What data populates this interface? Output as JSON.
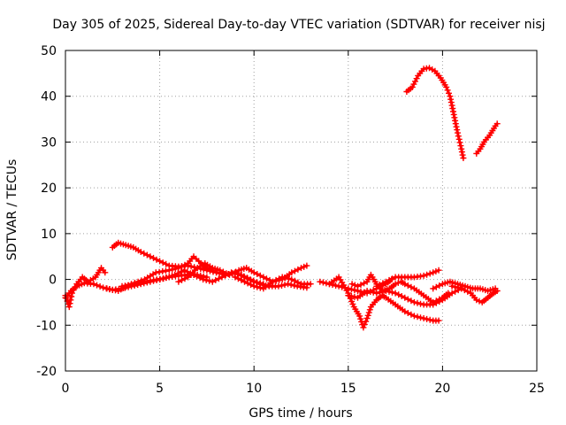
{
  "chart_data": {
    "type": "scatter",
    "title": "Day 305 of 2025, Sidereal Day-to-day VTEC variation (SDTVAR) for receiver nisj",
    "xlabel": "GPS time / hours",
    "ylabel": "SDTVAR / TECUs",
    "xlim": [
      0,
      25
    ],
    "ylim": [
      -20,
      50
    ],
    "xticks": [
      0,
      5,
      10,
      15,
      20,
      25
    ],
    "yticks": [
      -20,
      -10,
      0,
      10,
      20,
      30,
      40,
      50
    ],
    "grid": true,
    "marker": "+",
    "series": [
      {
        "name": "SDTVAR",
        "color": "#ff0000",
        "tracks": [
          [
            [
              0.0,
              -3.5
            ],
            [
              0.2,
              -6.0
            ],
            [
              0.35,
              -3.0
            ],
            [
              0.6,
              -1.0
            ],
            [
              0.9,
              0.5
            ],
            [
              1.2,
              -0.5
            ],
            [
              1.6,
              0.5
            ],
            [
              1.9,
              2.5
            ],
            [
              2.1,
              1.5
            ]
          ],
          [
            [
              0.0,
              -4.0
            ],
            [
              0.3,
              -2.5
            ],
            [
              0.6,
              -1.5
            ],
            [
              1.0,
              -0.8
            ],
            [
              1.5,
              -1.0
            ],
            [
              2.0,
              -1.8
            ],
            [
              2.5,
              -2.3
            ],
            [
              3.0,
              -2.0
            ],
            [
              3.5,
              -1.5
            ],
            [
              4.0,
              -1.0
            ],
            [
              4.5,
              -0.5
            ],
            [
              5.0,
              0.0
            ],
            [
              5.5,
              0.5
            ],
            [
              6.0,
              0.8
            ],
            [
              6.5,
              1.0
            ],
            [
              7.0,
              1.0
            ],
            [
              7.5,
              0.5
            ]
          ],
          [
            [
              2.5,
              7.0
            ],
            [
              2.8,
              8.0
            ],
            [
              3.2,
              7.5
            ],
            [
              3.6,
              7.0
            ],
            [
              4.0,
              6.0
            ],
            [
              4.5,
              5.0
            ],
            [
              5.0,
              4.0
            ],
            [
              5.5,
              3.0
            ],
            [
              6.0,
              2.8
            ],
            [
              6.5,
              3.0
            ],
            [
              7.0,
              2.5
            ],
            [
              7.5,
              2.0
            ],
            [
              8.0,
              1.5
            ]
          ],
          [
            [
              2.2,
              -2.0
            ],
            [
              2.8,
              -2.5
            ],
            [
              3.5,
              -1.0
            ],
            [
              4.2,
              0.0
            ],
            [
              4.8,
              1.5
            ],
            [
              5.5,
              2.0
            ],
            [
              6.0,
              2.5
            ],
            [
              6.5,
              3.5
            ],
            [
              6.8,
              5.0
            ],
            [
              7.2,
              3.5
            ],
            [
              7.5,
              2.5
            ],
            [
              8.0,
              1.5
            ],
            [
              8.5,
              1.0
            ],
            [
              9.0,
              1.5
            ],
            [
              9.5,
              0.5
            ],
            [
              10.0,
              -0.5
            ],
            [
              10.5,
              -1.0
            ]
          ],
          [
            [
              3.0,
              -1.5
            ],
            [
              3.8,
              -1.0
            ],
            [
              4.5,
              -0.3
            ],
            [
              5.2,
              0.2
            ],
            [
              5.8,
              1.0
            ],
            [
              6.3,
              2.0
            ],
            [
              6.8,
              1.0
            ],
            [
              7.3,
              0.0
            ],
            [
              7.8,
              -0.5
            ],
            [
              8.3,
              0.5
            ],
            [
              8.8,
              1.5
            ],
            [
              9.3,
              1.0
            ],
            [
              9.8,
              0.0
            ],
            [
              10.3,
              -1.0
            ],
            [
              10.8,
              -1.5
            ],
            [
              11.3,
              -1.5
            ],
            [
              11.8,
              -1.0
            ],
            [
              12.3,
              -1.5
            ],
            [
              12.8,
              -1.8
            ]
          ],
          [
            [
              6.0,
              -0.5
            ],
            [
              6.5,
              0.5
            ],
            [
              7.0,
              2.5
            ],
            [
              7.4,
              3.5
            ],
            [
              7.8,
              2.5
            ],
            [
              8.2,
              2.0
            ],
            [
              8.7,
              1.0
            ],
            [
              9.2,
              2.0
            ],
            [
              9.6,
              2.5
            ],
            [
              10.0,
              1.5
            ],
            [
              10.5,
              0.5
            ],
            [
              11.0,
              -0.5
            ],
            [
              11.5,
              0.0
            ],
            [
              12.0,
              1.5
            ],
            [
              12.5,
              2.5
            ],
            [
              12.8,
              3.0
            ]
          ],
          [
            [
              9.0,
              0.5
            ],
            [
              9.5,
              -0.5
            ],
            [
              10.0,
              -1.5
            ],
            [
              10.5,
              -2.0
            ],
            [
              11.0,
              -0.5
            ],
            [
              11.5,
              0.5
            ],
            [
              12.0,
              0.0
            ],
            [
              12.5,
              -1.0
            ],
            [
              13.0,
              -1.0
            ]
          ],
          [
            [
              13.5,
              -0.5
            ],
            [
              14.0,
              -1.0
            ],
            [
              14.5,
              -1.5
            ],
            [
              15.0,
              -2.0
            ],
            [
              15.5,
              -2.5
            ],
            [
              16.0,
              -3.0
            ],
            [
              16.5,
              -2.0
            ],
            [
              17.0,
              -1.0
            ],
            [
              17.3,
              0.0
            ]
          ],
          [
            [
              14.0,
              -1.0
            ],
            [
              14.5,
              0.5
            ],
            [
              15.0,
              -3.0
            ],
            [
              15.3,
              -6.0
            ],
            [
              15.6,
              -8.0
            ],
            [
              15.8,
              -10.5
            ],
            [
              16.0,
              -8.5
            ],
            [
              16.2,
              -6.0
            ],
            [
              16.5,
              -4.5
            ],
            [
              16.8,
              -3.5
            ],
            [
              17.0,
              -4.0
            ],
            [
              17.5,
              -5.5
            ],
            [
              18.0,
              -7.0
            ],
            [
              18.5,
              -8.0
            ],
            [
              19.0,
              -8.5
            ],
            [
              19.5,
              -9.0
            ],
            [
              19.8,
              -9.0
            ]
          ],
          [
            [
              15.2,
              -1.0
            ],
            [
              15.5,
              -1.5
            ],
            [
              16.0,
              -0.5
            ],
            [
              16.2,
              1.0
            ],
            [
              16.5,
              -1.0
            ],
            [
              16.8,
              -2.5
            ],
            [
              17.2,
              -2.0
            ],
            [
              17.5,
              -1.0
            ],
            [
              17.8,
              -0.5
            ],
            [
              18.0,
              -1.0
            ],
            [
              18.5,
              -2.0
            ],
            [
              19.0,
              -3.5
            ],
            [
              19.5,
              -5.0
            ],
            [
              20.0,
              -4.0
            ],
            [
              20.3,
              -3.0
            ]
          ],
          [
            [
              15.0,
              -3.5
            ],
            [
              15.5,
              -4.0
            ],
            [
              16.0,
              -2.5
            ],
            [
              16.5,
              -3.0
            ],
            [
              17.0,
              -2.5
            ],
            [
              17.5,
              -3.0
            ],
            [
              18.0,
              -4.0
            ],
            [
              18.5,
              -5.0
            ],
            [
              19.0,
              -5.5
            ],
            [
              19.5,
              -5.5
            ],
            [
              20.0,
              -4.5
            ],
            [
              20.5,
              -3.0
            ],
            [
              21.0,
              -2.0
            ]
          ],
          [
            [
              16.5,
              -1.5
            ],
            [
              17.0,
              -0.5
            ],
            [
              17.5,
              0.5
            ],
            [
              18.0,
              0.5
            ],
            [
              18.5,
              0.5
            ],
            [
              19.0,
              0.8
            ],
            [
              19.5,
              1.5
            ],
            [
              19.8,
              2.0
            ]
          ],
          [
            [
              19.5,
              -2.0
            ],
            [
              20.0,
              -1.0
            ],
            [
              20.4,
              -0.5
            ],
            [
              20.8,
              -1.0
            ],
            [
              21.2,
              -1.5
            ],
            [
              21.6,
              -2.0
            ],
            [
              22.0,
              -2.0
            ],
            [
              22.4,
              -2.5
            ],
            [
              22.8,
              -2.0
            ]
          ],
          [
            [
              20.5,
              -1.5
            ],
            [
              21.0,
              -2.0
            ],
            [
              21.5,
              -3.0
            ],
            [
              21.8,
              -4.5
            ],
            [
              22.1,
              -5.0
            ],
            [
              22.4,
              -4.0
            ],
            [
              22.7,
              -3.0
            ],
            [
              22.9,
              -2.5
            ]
          ],
          [
            [
              18.1,
              41.0
            ],
            [
              18.4,
              42.0
            ],
            [
              18.7,
              44.5
            ],
            [
              19.0,
              46.0
            ],
            [
              19.3,
              46.2
            ],
            [
              19.6,
              45.5
            ],
            [
              19.9,
              44.0
            ],
            [
              20.2,
              42.0
            ],
            [
              20.4,
              40.0
            ],
            [
              20.6,
              36.0
            ],
            [
              20.8,
              32.0
            ],
            [
              21.0,
              28.5
            ],
            [
              21.1,
              26.5
            ]
          ],
          [
            [
              21.8,
              27.5
            ],
            [
              22.0,
              28.5
            ],
            [
              22.2,
              30.0
            ],
            [
              22.5,
              31.5
            ],
            [
              22.8,
              33.5
            ],
            [
              22.9,
              34.0
            ]
          ]
        ]
      }
    ]
  }
}
